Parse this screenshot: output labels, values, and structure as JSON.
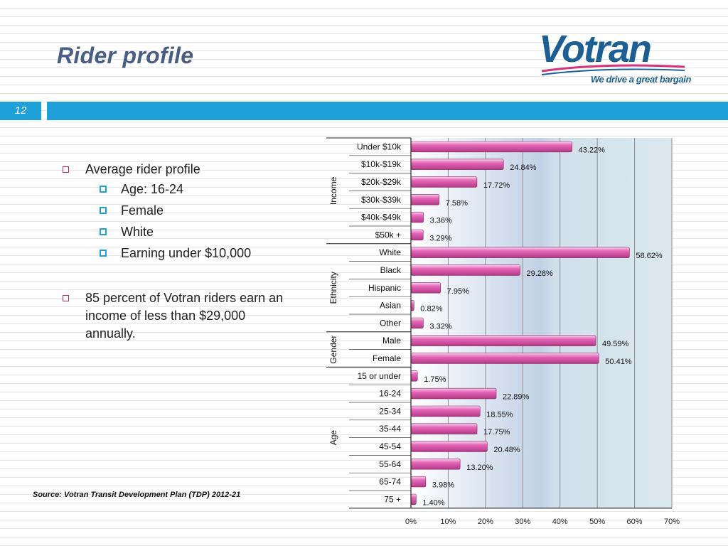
{
  "header": {
    "title": "Rider profile",
    "slide_number": "12",
    "logo_text": "Votran",
    "logo_tagline": "We drive a great bargain"
  },
  "bullets": {
    "item1": "Average rider profile",
    "sub": [
      "Age: 16-24",
      "Female",
      "White",
      "Earning under $10,000"
    ],
    "item2": "85 percent of Votran riders earn an income of less than $29,000 annually."
  },
  "source": "Source:  Votran Transit Development Plan (TDP) 2012-21",
  "colors": {
    "accent_bar": "#1ea0d8",
    "title": "#4a5e85",
    "bar_fill": "#e667b8",
    "logo": "#1b5f94"
  },
  "chart_data": {
    "type": "bar",
    "orientation": "horizontal",
    "title": "",
    "xlim": [
      0,
      70
    ],
    "xticks": [
      "0%",
      "10%",
      "20%",
      "30%",
      "40%",
      "50%",
      "60%",
      "70%"
    ],
    "grid": true,
    "groups": [
      {
        "name": "Income",
        "categories": [
          "Under $10k",
          "$10k-$19k",
          "$20k-$29k",
          "$30k-$39k",
          "$40k-$49k",
          "$50k +"
        ],
        "values": [
          43.22,
          24.84,
          17.72,
          7.58,
          3.36,
          3.29
        ],
        "labels": [
          "43.22%",
          "24.84%",
          "17.72%",
          "7.58%",
          "3.36%",
          "3.29%"
        ]
      },
      {
        "name": "Ethnicity",
        "categories": [
          "White",
          "Black",
          "Hispanic",
          "Asian",
          "Other"
        ],
        "values": [
          58.62,
          29.28,
          7.95,
          0.82,
          3.32
        ],
        "labels": [
          "58.62%",
          "29.28%",
          "7.95%",
          "0.82%",
          "3.32%"
        ]
      },
      {
        "name": "Gender",
        "categories": [
          "Male",
          "Female"
        ],
        "values": [
          49.59,
          50.41
        ],
        "labels": [
          "49.59%",
          "50.41%"
        ]
      },
      {
        "name": "Age",
        "categories": [
          "15 or under",
          "16-24",
          "25-34",
          "35-44",
          "45-54",
          "55-64",
          "65-74",
          "75 +"
        ],
        "values": [
          1.75,
          22.89,
          18.55,
          17.75,
          20.48,
          13.2,
          3.98,
          1.4
        ],
        "labels": [
          "1.75%",
          "22.89%",
          "18.55%",
          "17.75%",
          "20.48%",
          "13.20%",
          "3.98%",
          "1.40%"
        ]
      }
    ]
  }
}
